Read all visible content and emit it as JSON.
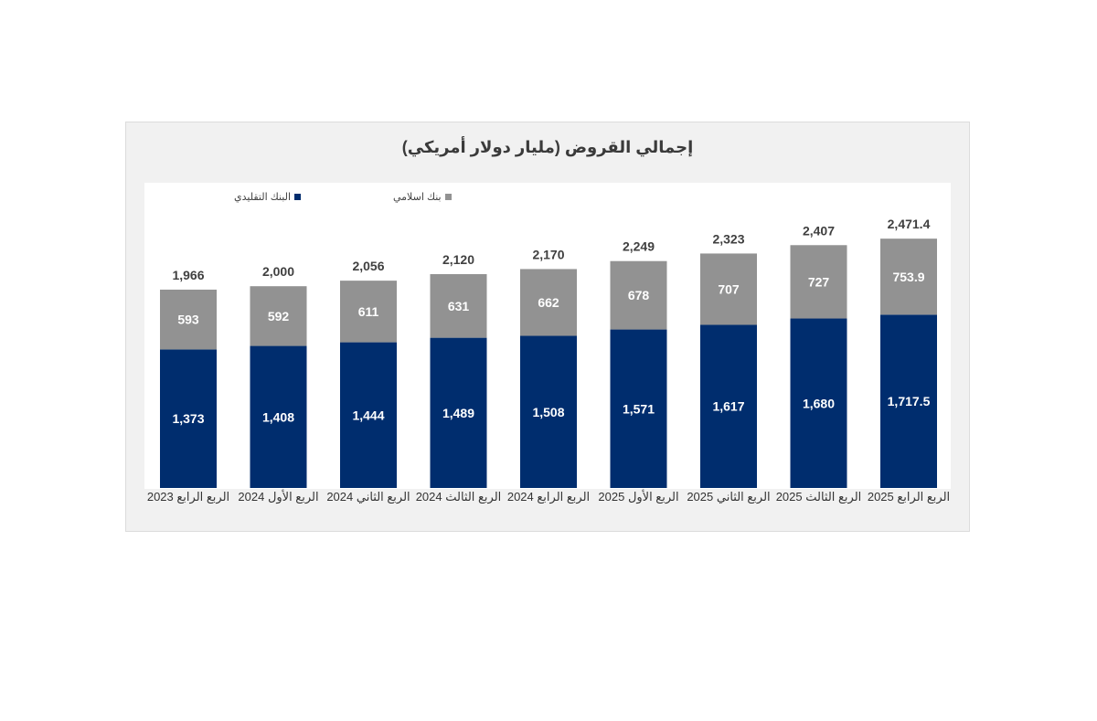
{
  "chart_data": {
    "type": "bar",
    "stacked": true,
    "title": "إجمالي القروض (مليار دولار أمريكي)",
    "categories": [
      "الربع الرابع 2023",
      "الربع الأول 2024",
      "الربع الثاني 2024",
      "الربع الثالث 2024",
      "الربع الرابع 2024",
      "الربع الأول 2025",
      "الربع الثاني 2025",
      "الربع الثالث 2025",
      "الربع الرابع 2025"
    ],
    "series": [
      {
        "name": "البنك التقليدي",
        "color": "#002d6e",
        "values": [
          1373,
          1408,
          1444,
          1489,
          1508,
          1571,
          1617,
          1680,
          1717.5
        ],
        "labels": [
          "1,373",
          "1,408",
          "1,444",
          "1,489",
          "1,508",
          "1,571",
          "1,617",
          "1,680",
          "1,717.5"
        ]
      },
      {
        "name": "بنك اسلامي",
        "color": "#929292",
        "values": [
          593,
          592,
          611,
          631,
          662,
          678,
          707,
          727,
          753.9
        ],
        "labels": [
          "593",
          "592",
          "611",
          "631",
          "662",
          "678",
          "707",
          "727",
          "753.9"
        ]
      }
    ],
    "totals": [
      1966,
      2000,
      2056,
      2120,
      2170,
      2249,
      2323,
      2407,
      2471.4
    ],
    "total_labels": [
      "1,966",
      "2,000",
      "2,056",
      "2,120",
      "2,170",
      "2,249",
      "2,323",
      "2,407",
      "2,471.4"
    ],
    "ylim": [
      0,
      2800
    ],
    "grid": false,
    "legend_position": "top-left"
  }
}
